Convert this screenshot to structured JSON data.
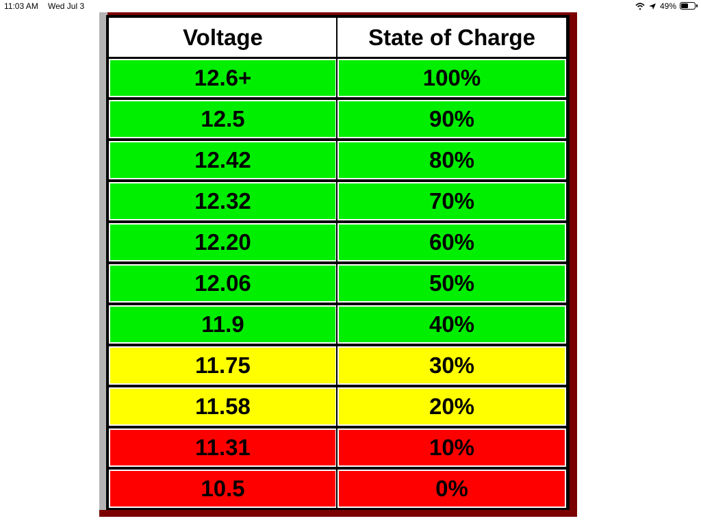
{
  "status_bar": {
    "time": "11:03 AM",
    "date": "Wed Jul 3",
    "battery": "49%"
  },
  "table": {
    "header": [
      "Voltage",
      "State of Charge"
    ],
    "rows": [
      {
        "cells": [
          "12.6+",
          "100%"
        ],
        "color": "#00ee00"
      },
      {
        "cells": [
          "12.5",
          "90%"
        ],
        "color": "#00ee00"
      },
      {
        "cells": [
          "12.42",
          "80%"
        ],
        "color": "#00ee00"
      },
      {
        "cells": [
          "12.32",
          "70%"
        ],
        "color": "#00ee00"
      },
      {
        "cells": [
          "12.20",
          "60%"
        ],
        "color": "#00ee00"
      },
      {
        "cells": [
          "12.06",
          "50%"
        ],
        "color": "#00ee00"
      },
      {
        "cells": [
          "11.9",
          "40%"
        ],
        "color": "#00ee00"
      },
      {
        "cells": [
          "11.75",
          "30%"
        ],
        "color": "#ffff00"
      },
      {
        "cells": [
          "11.58",
          "20%"
        ],
        "color": "#ffff00"
      },
      {
        "cells": [
          "11.31",
          "10%"
        ],
        "color": "#ff0000"
      },
      {
        "cells": [
          "10.5",
          "0%"
        ],
        "color": "#ff0000"
      }
    ]
  }
}
